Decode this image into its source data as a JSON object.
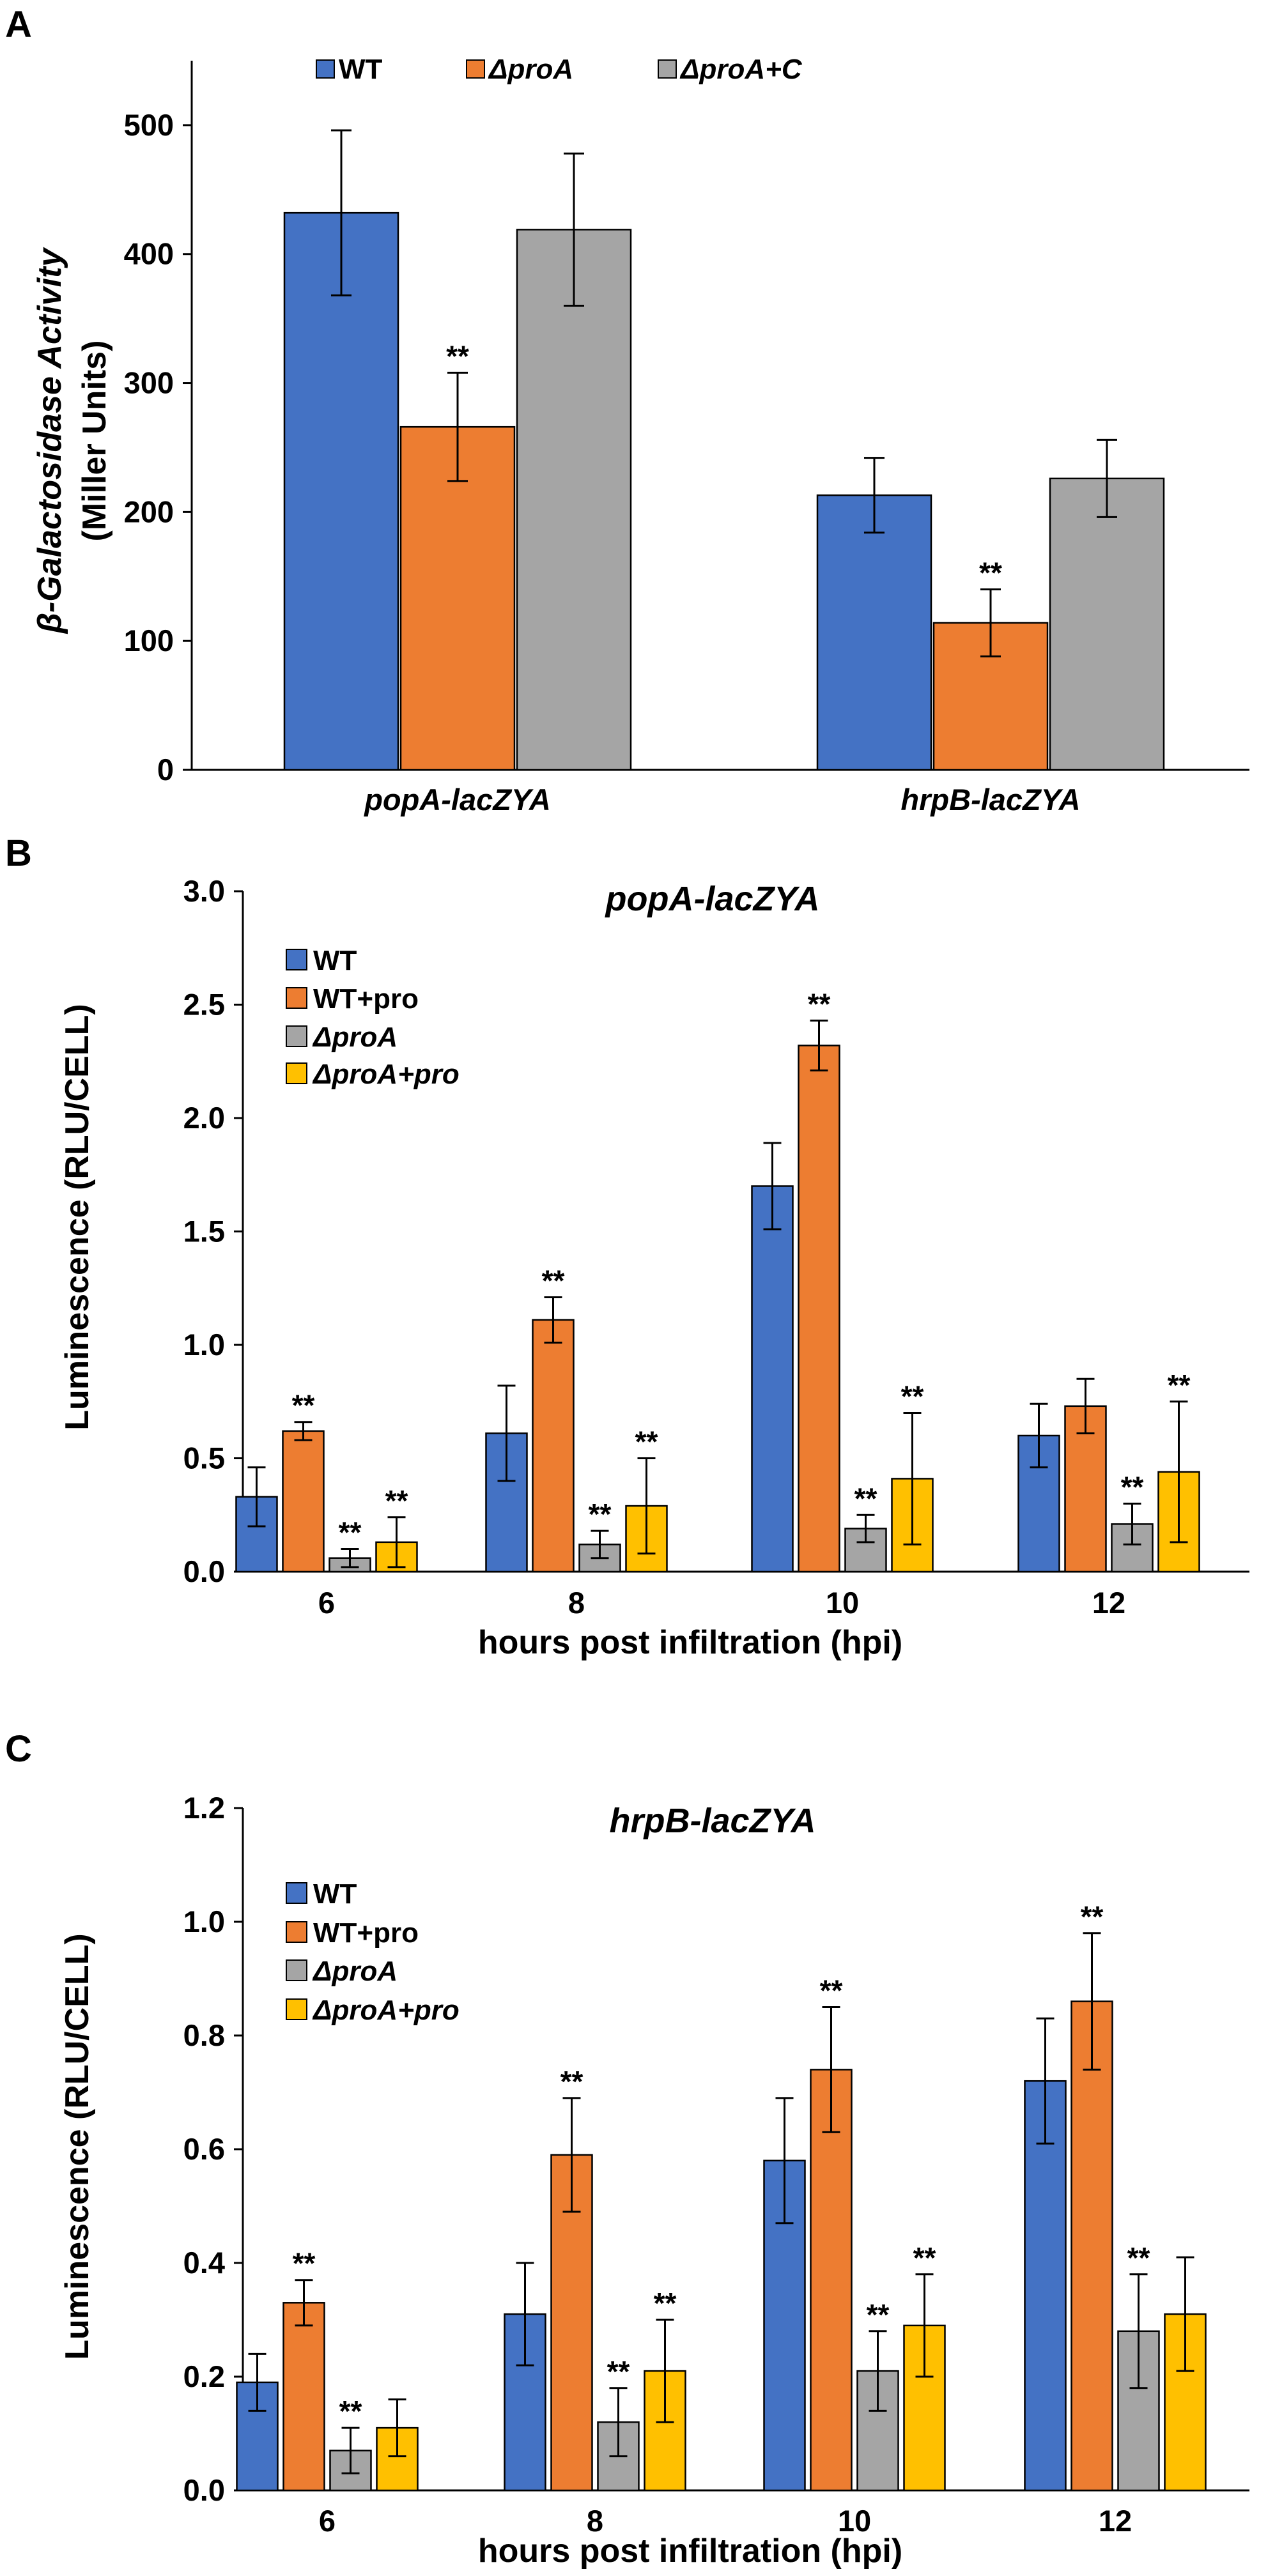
{
  "chart_data": [
    {
      "panel_label": "A",
      "type": "bar",
      "title": "",
      "xlabel": "",
      "ylabel_lines": [
        "β-Galactosidase Activity",
        "(Miller Units)"
      ],
      "ylim": [
        0,
        550
      ],
      "yticks": [
        0,
        100,
        200,
        300,
        400,
        500
      ],
      "ytick_labels": [
        "0",
        "100",
        "200",
        "300",
        "400",
        "500"
      ],
      "grid": false,
      "legend_position": "top",
      "categories": [
        "popA-lacZYA",
        "hrpB-lacZYA"
      ],
      "category_italic": true,
      "series": [
        {
          "name": "WT",
          "name_italic": false,
          "color": "#4472C4",
          "values": [
            432,
            213
          ],
          "errors": [
            64,
            29
          ],
          "annotations": [
            "",
            ""
          ]
        },
        {
          "name": "ΔproA",
          "name_italic": true,
          "color": "#ED7D31",
          "values": [
            266,
            114
          ],
          "errors": [
            42,
            26
          ],
          "annotations": [
            "**",
            "**"
          ]
        },
        {
          "name": "ΔproA+C",
          "name_italic": true,
          "color": "#A5A5A5",
          "values": [
            419,
            226
          ],
          "errors": [
            59,
            30
          ],
          "annotations": [
            "",
            ""
          ]
        }
      ]
    },
    {
      "panel_label": "B",
      "type": "bar",
      "title": "popA-lacZYA",
      "xlabel": "hours post infiltration (hpi)",
      "ylabel_lines": [
        "Luminescence (RLU/CELL)"
      ],
      "ylim": [
        0,
        3.0
      ],
      "yticks": [
        0,
        0.5,
        1.0,
        1.5,
        2.0,
        2.5,
        3.0
      ],
      "ytick_labels": [
        "0.0",
        "0.5",
        "1.0",
        "1.5",
        "2.0",
        "2.5",
        "3.0"
      ],
      "grid": false,
      "legend_position": "top-left",
      "categories": [
        "6",
        "8",
        "10",
        "12"
      ],
      "category_italic": false,
      "series": [
        {
          "name": "WT",
          "name_italic": false,
          "color": "#4472C4",
          "values": [
            0.33,
            0.61,
            1.7,
            0.6
          ],
          "errors": [
            0.13,
            0.21,
            0.19,
            0.14
          ],
          "annotations": [
            "",
            "",
            "",
            ""
          ]
        },
        {
          "name": "WT+pro",
          "name_italic": false,
          "color": "#ED7D31",
          "values": [
            0.62,
            1.11,
            2.32,
            0.73
          ],
          "errors": [
            0.04,
            0.1,
            0.11,
            0.12
          ],
          "annotations": [
            "**",
            "**",
            "**",
            ""
          ]
        },
        {
          "name": "ΔproA",
          "name_italic": true,
          "color": "#A5A5A5",
          "values": [
            0.06,
            0.12,
            0.19,
            0.21
          ],
          "errors": [
            0.04,
            0.06,
            0.06,
            0.09
          ],
          "annotations": [
            "**",
            "**",
            "**",
            "**"
          ]
        },
        {
          "name": "ΔproA+pro",
          "name_italic": true,
          "color": "#FFC000",
          "values": [
            0.13,
            0.29,
            0.41,
            0.44
          ],
          "errors": [
            0.11,
            0.21,
            0.29,
            0.31
          ],
          "annotations": [
            "**",
            "**",
            "**",
            "**"
          ]
        }
      ]
    },
    {
      "panel_label": "C",
      "type": "bar",
      "title": "hrpB-lacZYA",
      "xlabel": "hours post infiltration (hpi)",
      "ylabel_lines": [
        "Luminescence (RLU/CELL)"
      ],
      "ylim": [
        0,
        1.2
      ],
      "yticks": [
        0,
        0.2,
        0.4,
        0.6,
        0.8,
        1.0,
        1.2
      ],
      "ytick_labels": [
        "0.0",
        "0.2",
        "0.4",
        "0.6",
        "0.8",
        "1.0",
        "1.2"
      ],
      "grid": false,
      "legend_position": "top-left",
      "categories": [
        "6",
        "8",
        "10",
        "12"
      ],
      "category_italic": false,
      "series": [
        {
          "name": "WT",
          "name_italic": false,
          "color": "#4472C4",
          "values": [
            0.19,
            0.31,
            0.58,
            0.72
          ],
          "errors": [
            0.05,
            0.09,
            0.11,
            0.11
          ],
          "annotations": [
            "",
            "",
            "",
            ""
          ]
        },
        {
          "name": "WT+pro",
          "name_italic": false,
          "color": "#ED7D31",
          "values": [
            0.33,
            0.59,
            0.74,
            0.86
          ],
          "errors": [
            0.04,
            0.1,
            0.11,
            0.12
          ],
          "annotations": [
            "**",
            "**",
            "**",
            "**"
          ]
        },
        {
          "name": "ΔproA",
          "name_italic": true,
          "color": "#A5A5A5",
          "values": [
            0.07,
            0.12,
            0.21,
            0.28
          ],
          "errors": [
            0.04,
            0.06,
            0.07,
            0.1
          ],
          "annotations": [
            "**",
            "**",
            "**",
            "**"
          ]
        },
        {
          "name": "ΔproA+pro",
          "name_italic": true,
          "color": "#FFC000",
          "values": [
            0.11,
            0.21,
            0.29,
            0.31
          ],
          "errors": [
            0.05,
            0.09,
            0.09,
            0.1
          ],
          "annotations": [
            "",
            "**",
            "**",
            ""
          ]
        }
      ]
    }
  ]
}
